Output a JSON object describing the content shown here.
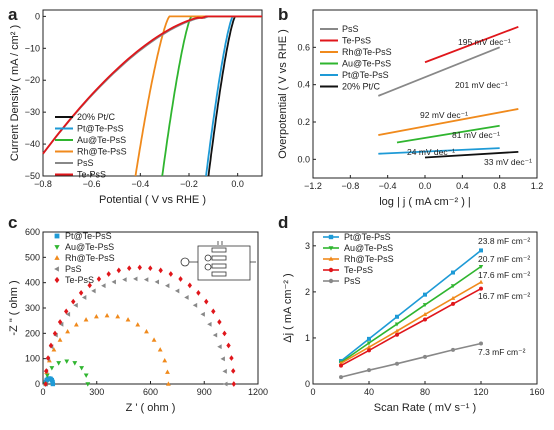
{
  "chart_data": [
    {
      "panel": "a",
      "type": "line",
      "xlabel": "Potential ( V vs RHE )",
      "ylabel": "Current Density ( mA / cm² )",
      "xlim": [
        -0.8,
        0.1
      ],
      "ylim": [
        -50,
        2
      ],
      "xticks": [
        -0.8,
        -0.6,
        -0.4,
        -0.2,
        0.0
      ],
      "yticks": [
        0,
        -10,
        -20,
        -30,
        -40,
        -50
      ],
      "legend_position": "bottom-left",
      "series": [
        {
          "name": "20% Pt/C",
          "color": "#111111",
          "onset": -0.01,
          "end_x": -0.12
        },
        {
          "name": "Pt@Te-PsS",
          "color": "#1e9ad6",
          "onset": -0.02,
          "end_x": -0.13
        },
        {
          "name": "Au@Te-PsS",
          "color": "#2fb52f",
          "onset": -0.19,
          "end_x": -0.31
        },
        {
          "name": "Rh@Te-PsS",
          "color": "#f08a1c",
          "onset": -0.28,
          "end_x": -0.42
        },
        {
          "name": "PsS",
          "color": "#888888",
          "onset": -0.12,
          "end_x": -0.8
        },
        {
          "name": "Te-PsS",
          "color": "#e0161b",
          "onset": -0.13,
          "end_x": -0.8
        }
      ]
    },
    {
      "panel": "b",
      "type": "line",
      "xlabel": "log | j ( mA cm⁻² ) |",
      "ylabel": "Overpotential ( V vs RHE )",
      "xlim": [
        -1.2,
        1.2
      ],
      "ylim": [
        -0.1,
        0.8
      ],
      "xticks": [
        -1.2,
        -0.8,
        -0.4,
        0.0,
        0.4,
        0.8,
        1.2
      ],
      "yticks": [
        0.0,
        0.2,
        0.4,
        0.6
      ],
      "legend_position": "top-left",
      "series": [
        {
          "name": "PsS",
          "color": "#888888",
          "x": [
            -0.5,
            0.8
          ],
          "y": [
            0.34,
            0.6
          ],
          "tafel": "201 mV dec⁻¹"
        },
        {
          "name": "Te-PsS",
          "color": "#e0161b",
          "x": [
            0.0,
            1.0
          ],
          "y": [
            0.52,
            0.71
          ],
          "tafel": "195 mV dec⁻¹"
        },
        {
          "name": "Rh@Te-PsS",
          "color": "#f08a1c",
          "x": [
            -0.5,
            1.0
          ],
          "y": [
            0.13,
            0.27
          ],
          "tafel": "92 mV dec⁻¹"
        },
        {
          "name": "Au@Te-PsS",
          "color": "#2fb52f",
          "x": [
            -0.3,
            0.8
          ],
          "y": [
            0.09,
            0.18
          ],
          "tafel": "81 mV dec⁻¹"
        },
        {
          "name": "Pt@Te-PsS",
          "color": "#1e9ad6",
          "x": [
            -0.5,
            0.8
          ],
          "y": [
            0.03,
            0.06
          ],
          "tafel": "24 mV dec⁻¹"
        },
        {
          "name": "20% Pt/C",
          "color": "#111111",
          "x": [
            0.0,
            1.0
          ],
          "y": [
            0.01,
            0.04
          ],
          "tafel": "33 mV dec⁻¹"
        }
      ]
    },
    {
      "panel": "c",
      "type": "scatter",
      "xlabel": "Z ' ( ohm )",
      "ylabel": "-Z \" ( ohm )",
      "xlim": [
        0,
        1200
      ],
      "ylim": [
        0,
        600
      ],
      "xticks": [
        0,
        300,
        600,
        900,
        1200
      ],
      "yticks": [
        0,
        100,
        200,
        300,
        400,
        500,
        600
      ],
      "legend_position": "top-left",
      "series": [
        {
          "name": "Pt@Te-PsS",
          "color": "#1e9ad6",
          "marker": "square",
          "r0": 15,
          "r1": 55,
          "peak": 22
        },
        {
          "name": "Au@Te-PsS",
          "color": "#2fb52f",
          "marker": "triangle-down",
          "r0": 15,
          "r1": 250,
          "peak": 90
        },
        {
          "name": "Rh@Te-PsS",
          "color": "#f08a1c",
          "marker": "triangle-up",
          "r0": 15,
          "r1": 700,
          "peak": 270
        },
        {
          "name": "PsS",
          "color": "#888888",
          "marker": "triangle-left",
          "r0": 15,
          "r1": 1020,
          "peak": 415
        },
        {
          "name": "Te-PsS",
          "color": "#e0161b",
          "marker": "diamond",
          "r0": 15,
          "r1": 1065,
          "peak": 460
        }
      ]
    },
    {
      "panel": "d",
      "type": "line",
      "xlabel": "Scan Rate ( mV s⁻¹ )",
      "ylabel": "Δj ( mA cm⁻² )",
      "xlim": [
        0,
        160
      ],
      "ylim": [
        0,
        3.3
      ],
      "xticks": [
        0,
        40,
        80,
        120,
        160
      ],
      "yticks": [
        0,
        1,
        2,
        3
      ],
      "legend_position": "top-left",
      "x": [
        20,
        40,
        60,
        80,
        100,
        120
      ],
      "series": [
        {
          "name": "Pt@Te-PsS",
          "color": "#1e9ad6",
          "marker": "square",
          "values": [
            0.5,
            0.98,
            1.46,
            1.94,
            2.42,
            2.9
          ],
          "label": "23.8 mF cm⁻²"
        },
        {
          "name": "Au@Te-PsS",
          "color": "#2fb52f",
          "marker": "triangle-down",
          "values": [
            0.47,
            0.89,
            1.3,
            1.72,
            2.13,
            2.55
          ],
          "label": "20.7 mF cm⁻²"
        },
        {
          "name": "Rh@Te-PsS",
          "color": "#f08a1c",
          "marker": "triangle-up",
          "values": [
            0.45,
            0.8,
            1.15,
            1.51,
            1.86,
            2.21
          ],
          "label": "17.6 mF cm⁻²"
        },
        {
          "name": "Te-PsS",
          "color": "#e0161b",
          "marker": "circle",
          "values": [
            0.4,
            0.73,
            1.07,
            1.4,
            1.74,
            2.07
          ],
          "label": "16.7 mF cm⁻²"
        },
        {
          "name": "PsS",
          "color": "#888888",
          "marker": "circle",
          "values": [
            0.15,
            0.3,
            0.44,
            0.59,
            0.74,
            0.88
          ],
          "label": "7.3 mF cm⁻²"
        }
      ]
    }
  ],
  "panel_labels": {
    "a": "a",
    "b": "b",
    "c": "c",
    "d": "d"
  }
}
